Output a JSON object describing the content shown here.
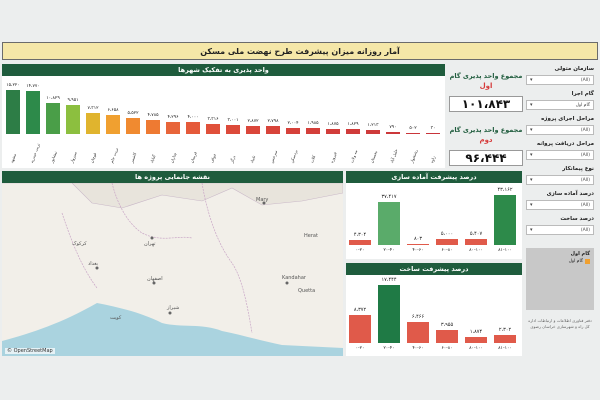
{
  "title": "آمار روزانه میزان پیشرفت طرح نهضت ملی مسکن",
  "city_chart": {
    "header": "واحد پذیری به تفکیک شهرها",
    "bars": [
      {
        "value": "۱۵،۲۲۰",
        "v": 15220,
        "cat": "مشهد",
        "color": "#2d7d46"
      },
      {
        "value": "۱۴،۷۷۰",
        "v": 14770,
        "cat": "تربت حیدریه",
        "color": "#2d8a4a"
      },
      {
        "value": "۱۰،۸۲۹",
        "v": 10829,
        "cat": "نیشابور",
        "color": "#4a9e48"
      },
      {
        "value": "۹،۹۵۱",
        "v": 9951,
        "cat": "سبزوار",
        "color": "#8cbf3f"
      },
      {
        "value": "۷،۳۱۲",
        "v": 7312,
        "cat": "قوچان",
        "color": "#e0b42e"
      },
      {
        "value": "۶،۶۵۸",
        "v": 6658,
        "cat": "تربت جام",
        "color": "#f0a030"
      },
      {
        "value": "۵،۵۲۲",
        "v": 5522,
        "cat": "کاشمر",
        "color": "#f08a30"
      },
      {
        "value": "۴،۷۸۵",
        "v": 4785,
        "cat": "گناباد",
        "color": "#ee7a32"
      },
      {
        "value": "۴،۲۹۶",
        "v": 4296,
        "cat": "چناران",
        "color": "#e8653a"
      },
      {
        "value": "۴،۰۰۰",
        "v": 4000,
        "cat": "فریمان",
        "color": "#e55a3a"
      },
      {
        "value": "۳،۳۱۶",
        "v": 3316,
        "cat": "خواف",
        "color": "#e0503a"
      },
      {
        "value": "۳،۰۰۱",
        "v": 3001,
        "cat": "درگز",
        "color": "#dc4a3a"
      },
      {
        "value": "۲،۸۷۲",
        "v": 2872,
        "cat": "تایباد",
        "color": "#da463a"
      },
      {
        "value": "۲،۷۹۸",
        "v": 2798,
        "cat": "سرخس",
        "color": "#d8443a"
      },
      {
        "value": "۲،۰۰۴",
        "v": 2004,
        "cat": "بردسکن",
        "color": "#d6413a"
      },
      {
        "value": "۱،۹۸۵",
        "v": 1985,
        "cat": "کلات",
        "color": "#d43f3a"
      },
      {
        "value": "۱،۸۷۵",
        "v": 1875,
        "cat": "فیروزه",
        "color": "#d23d3a"
      },
      {
        "value": "۱،۸۲۹",
        "v": 1829,
        "cat": "مه ولات",
        "color": "#d03b3a"
      },
      {
        "value": "۱،۲۱۳",
        "v": 1213,
        "cat": "بجستان",
        "color": "#ce3a3a"
      },
      {
        "value": "۷۹۰",
        "v": 790,
        "cat": "خلیل آباد",
        "color": "#cc383a"
      },
      {
        "value": "۵۰۲",
        "v": 502,
        "cat": "رشتخوار",
        "color": "#ca363a"
      },
      {
        "value": "۳۰",
        "v": 30,
        "cat": "زاوه",
        "color": "#c8343a"
      }
    ]
  },
  "kpi": {
    "label1": "مجموع واحد پذیری گام",
    "rank1": "اول",
    "value1": "۱۰۱،۸۴۳",
    "label2": "مجموع واحد پذیری گام",
    "rank2": "دوم",
    "value2": "۹۶،۴۴۴"
  },
  "filters": [
    {
      "label": "سازمان متولی",
      "value": "(All)"
    },
    {
      "label": "گام اجرا",
      "value": "گام اول"
    },
    {
      "label": "مراحل اجرای پروژه",
      "value": "(All)"
    },
    {
      "label": "مراحل دریافت پروانه",
      "value": "(All)"
    },
    {
      "label": "نوع پیمانکار",
      "value": "(All)"
    },
    {
      "label": "درصد آماده سازی",
      "value": "(All)"
    },
    {
      "label": "درصد ساخت",
      "value": "(All)"
    }
  ],
  "legend": {
    "title": "گام اول",
    "item": "گام اول"
  },
  "footnote": "دفتر فناوری اطلاعات و ارتباطات اداره کل راه و شهرسازی خراسان رضوی",
  "map": {
    "header": "نقشه جانمایی پروژه ها",
    "attribution": "© OpenStreetMap",
    "labels": [
      {
        "text": "Mary"
      },
      {
        "text": "تهران"
      },
      {
        "text": "بغداد"
      },
      {
        "text": "اصفهان"
      },
      {
        "text": "شیراز"
      },
      {
        "text": "Kandahar"
      },
      {
        "text": "Quetta"
      },
      {
        "text": "کرکوک"
      },
      {
        "text": "کویت"
      },
      {
        "text": "Herat"
      }
    ]
  },
  "prep_chart": {
    "header": "درصد پیشرفت آماده سازی",
    "bars": [
      {
        "value": "۴،۳۰۴",
        "v": 4304,
        "cat": "۰-۲۰",
        "color": "#e05a4a"
      },
      {
        "value": "۳۷،۴۱۷",
        "v": 37417,
        "cat": "۲۰-۴۰",
        "color": "#5aab6a"
      },
      {
        "value": "۸۰۳",
        "v": 803,
        "cat": "۴۰-۶۰",
        "color": "#e05a4a"
      },
      {
        "value": "۵،۰۰۰",
        "v": 5000,
        "cat": "۶۰-۸۰",
        "color": "#e05a4a"
      },
      {
        "value": "۵،۴۰۷",
        "v": 5407,
        "cat": "۸۰-۱۰۰",
        "color": "#e05a4a"
      },
      {
        "value": "۴۳،۱۶۲",
        "v": 43162,
        "cat": "۸۱-۱۰۰",
        "color": "#2d8a4a"
      }
    ]
  },
  "build_chart": {
    "header": "درصد پیشرفت ساخت",
    "bars": [
      {
        "value": "۸،۳۷۲",
        "v": 8372,
        "cat": "۰-۲۰",
        "color": "#e05a4a"
      },
      {
        "value": "۱۷،۴۴۴",
        "v": 17444,
        "cat": "۲۰-۴۰",
        "color": "#1f7a45"
      },
      {
        "value": "۶،۴۶۶",
        "v": 6466,
        "cat": "۴۰-۶۰",
        "color": "#e05a4a"
      },
      {
        "value": "۳،۹۵۵",
        "v": 3955,
        "cat": "۶۰-۸۰",
        "color": "#e05a4a"
      },
      {
        "value": "۱،۸۷۴",
        "v": 1874,
        "cat": "۸۰-۱۰۰",
        "color": "#e05a4a"
      },
      {
        "value": "۲،۳۰۲",
        "v": 2302,
        "cat": "۸۱-۱۰۰",
        "color": "#e05a4a"
      }
    ]
  },
  "chart_data": [
    {
      "type": "bar",
      "title": "واحد پذیری به تفکیک شهرها",
      "categories": [
        "مشهد",
        "تربت حیدریه",
        "نیشابور",
        "سبزوار",
        "قوچان",
        "تربت جام",
        "کاشمر",
        "گناباد",
        "چناران",
        "فریمان",
        "خواف",
        "درگز",
        "تایباد",
        "سرخس",
        "بردسکن",
        "کلات",
        "فیروزه",
        "مه ولات",
        "بجستان",
        "خلیل آباد",
        "رشتخوار",
        "زاوه"
      ],
      "values": [
        15220,
        14770,
        10829,
        9951,
        7312,
        6658,
        5522,
        4785,
        4296,
        4000,
        3316,
        3001,
        2872,
        2798,
        2004,
        1985,
        1875,
        1829,
        1213,
        790,
        502,
        30
      ]
    },
    {
      "type": "bar",
      "title": "درصد پیشرفت آماده سازی",
      "categories": [
        "۰-۲۰",
        "۲۰-۴۰",
        "۴۰-۶۰",
        "۶۰-۸۰",
        "۸۰-۱۰۰",
        "۸۱-۱۰۰"
      ],
      "values": [
        4304,
        37417,
        803,
        5000,
        5407,
        43162
      ]
    },
    {
      "type": "bar",
      "title": "درصد پیشرفت ساخت",
      "categories": [
        "۰-۲۰",
        "۲۰-۴۰",
        "۴۰-۶۰",
        "۶۰-۸۰",
        "۸۰-۱۰۰",
        "۸۱-۱۰۰"
      ],
      "values": [
        8372,
        17444,
        6466,
        3955,
        1874,
        2302
      ]
    }
  ]
}
